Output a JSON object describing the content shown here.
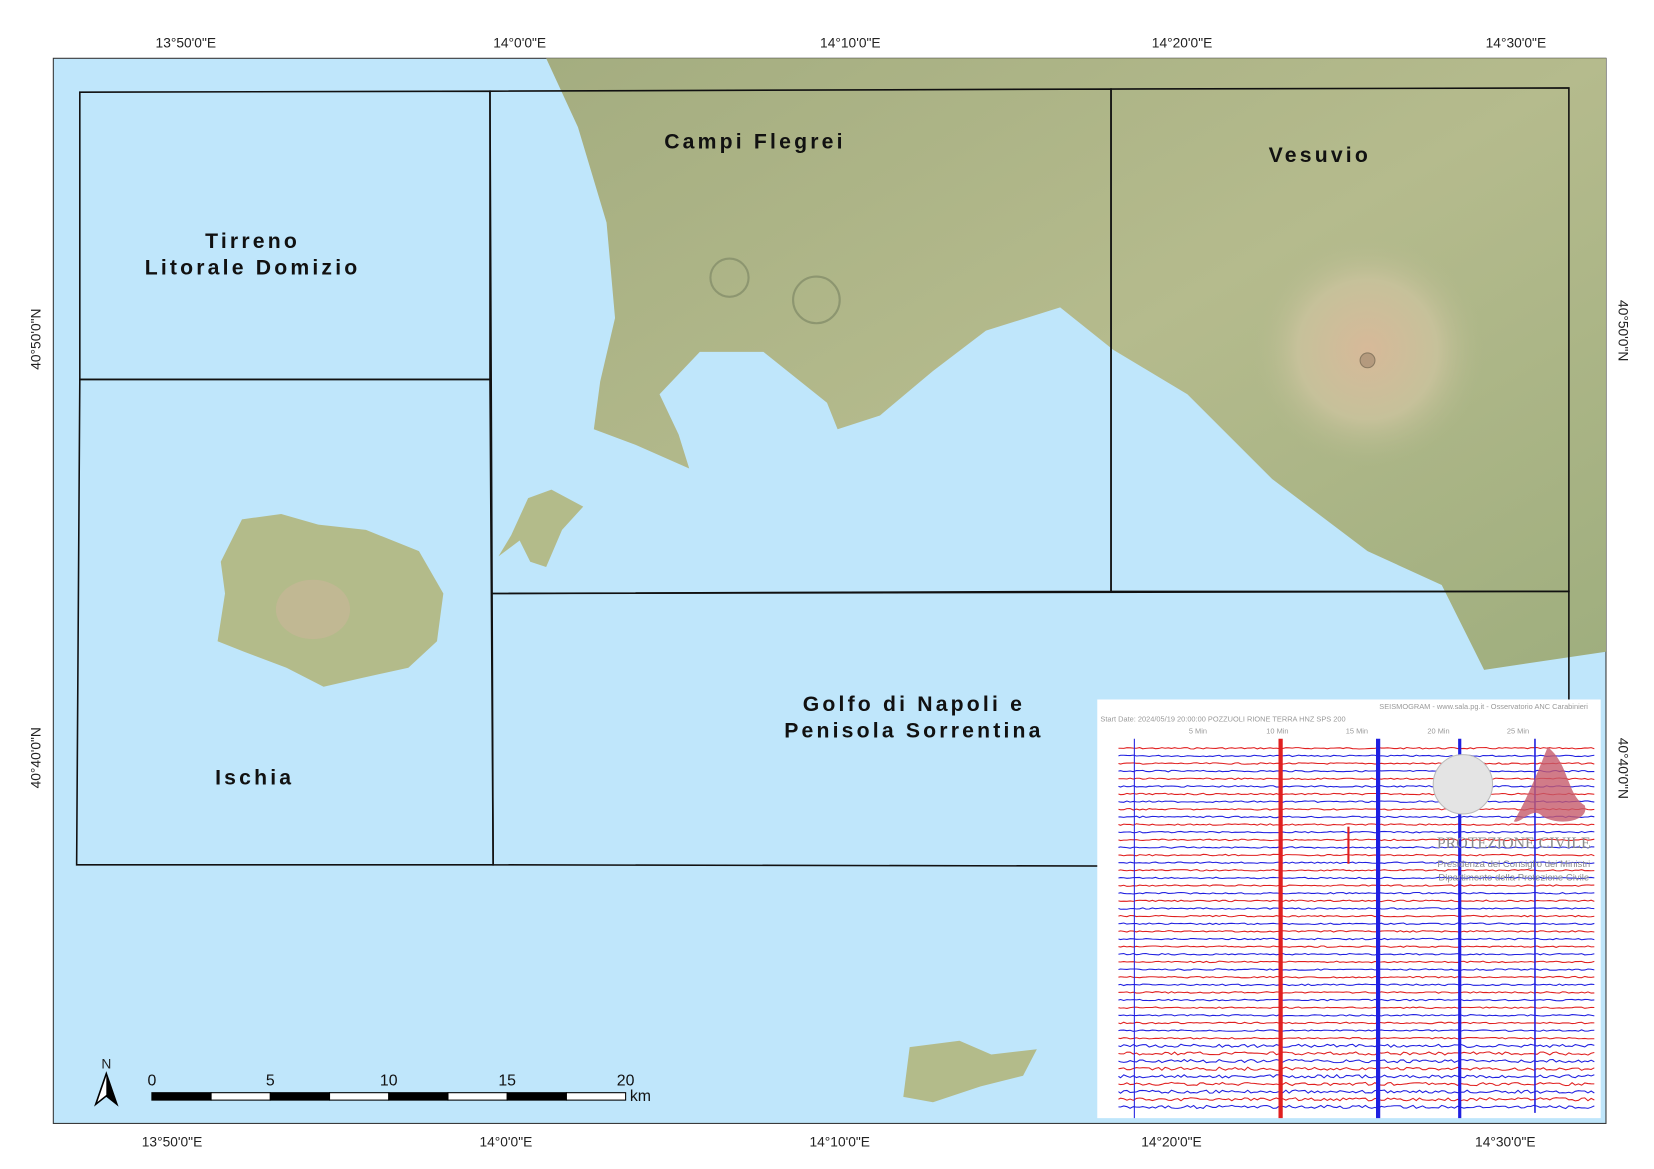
{
  "map": {
    "top_ticks": [
      "13°50'0\"E",
      "14°0'0\"E",
      "14°10'0\"E",
      "14°20'0\"E",
      "14°30'0\"E"
    ],
    "bottom_ticks": [
      "13°50'0\"E",
      "14°0'0\"E",
      "14°10'0\"E",
      "14°20'0\"E",
      "14°30'0\"E"
    ],
    "left_ticks": [
      "40°50'0\"N",
      "40°40'0\"N"
    ],
    "right_ticks": [
      "40°50'0\"N",
      "40°40'0\"N"
    ],
    "regions": [
      [
        "Tirreno",
        "Litorale Domizio"
      ],
      [
        "Campi Flegrei"
      ],
      [
        "Vesuvio"
      ],
      [
        "Ischia"
      ],
      [
        "Golfo di Napoli e",
        "Penisola Sorrentina"
      ]
    ],
    "scale_bar": {
      "labels": [
        "0",
        "5",
        "10",
        "15",
        "20"
      ],
      "unit": "km",
      "north": "N"
    },
    "seismogram": {
      "header": "SEISMOGRAM - www.sala.pg.it - Osservatorio ANC Carabinieri",
      "start": "Start Date: 2024/05/19 20:00:00 POZZUOLI RIONE TERRA HNZ SPS 200",
      "minutes": [
        "5 Min",
        "10 Min",
        "15 Min",
        "20 Min",
        "25 Min"
      ],
      "logo_title": "PROTEZIONE CIVILE",
      "logo_line1": "Presidenza del Consiglio dei Ministri",
      "logo_line2": "Dipartimento della Protezione Civile"
    }
  }
}
